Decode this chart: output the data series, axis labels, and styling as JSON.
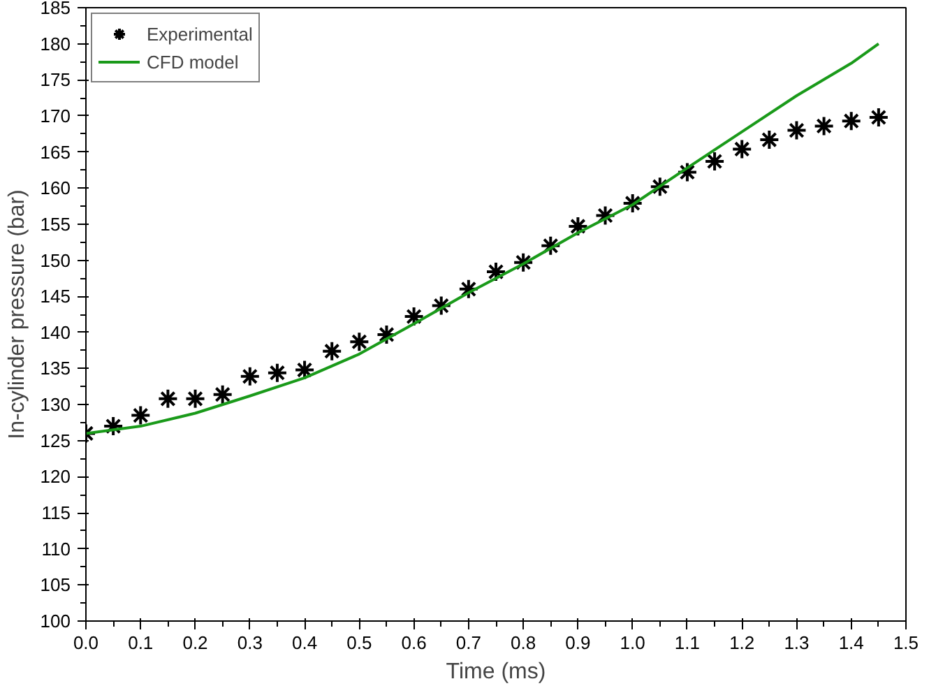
{
  "chart_data": {
    "type": "scatter",
    "xlabel": "Time (ms)",
    "ylabel": "In-cylinder pressure (bar)",
    "xlim": [
      0,
      1.5
    ],
    "xticks": [
      {
        "value": 0,
        "label": "0.0"
      },
      0.1,
      0.2,
      0.3,
      0.4,
      0.5,
      0.6,
      0.7,
      0.8,
      0.9,
      {
        "value": 1,
        "label": "1.0"
      },
      1.1,
      1.2,
      1.3,
      1.4,
      1.5
    ],
    "ylim": [
      100,
      185
    ],
    "yticks": [
      100,
      105,
      110,
      115,
      120,
      125,
      130,
      135,
      140,
      145,
      150,
      155,
      160,
      165,
      170,
      175,
      180,
      185
    ],
    "grid": false,
    "legend": "top left",
    "series": [
      {
        "name": "Experimental",
        "marker": "cross",
        "color": "#000000",
        "x": [
          0,
          0.05,
          0.1,
          0.15,
          0.2,
          0.25,
          0.3,
          0.35,
          0.4,
          0.45,
          0.5,
          0.55,
          0.6,
          0.65,
          0.7,
          0.75,
          0.8,
          0.85,
          0.9,
          0.95,
          1.0,
          1.05,
          1.1,
          1.15,
          1.2,
          1.25,
          1.3,
          1.35,
          1.4,
          1.45
        ],
        "values": [
          126,
          127,
          128.5,
          130.8,
          130.8,
          131.4,
          133.9,
          134.4,
          134.8,
          137.4,
          138.7,
          139.7,
          142.2,
          143.7,
          146,
          148.4,
          149.7,
          152,
          154.7,
          156.2,
          157.9,
          160.2,
          162.2,
          163.7,
          165.4,
          166.7,
          168,
          168.6,
          169.3,
          169.8
        ]
      },
      {
        "name": "CFD model",
        "type": "line",
        "line_style": "solid",
        "color": "#1a9a1a",
        "x": [
          0,
          0.1,
          0.2,
          0.3,
          0.4,
          0.5,
          0.6,
          0.7,
          0.8,
          0.9,
          1.0,
          1.1,
          1.2,
          1.3,
          1.4,
          1.45
        ],
        "values": [
          126,
          127,
          128.8,
          131.2,
          133.7,
          137,
          141.2,
          145.5,
          149.5,
          153.8,
          157.7,
          162.8,
          167.8,
          172.8,
          177.3,
          180
        ]
      }
    ]
  }
}
